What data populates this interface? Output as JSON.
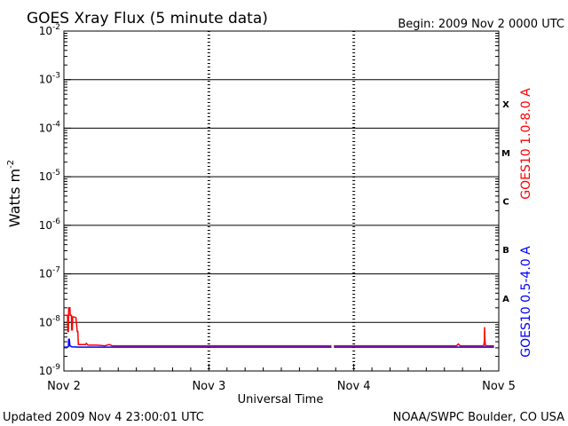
{
  "header": {
    "title": "GOES Xray Flux (5 minute data)",
    "begin": "Begin:  2009 Nov 2 0000 UTC"
  },
  "footer": {
    "updated": "Updated 2009 Nov  4 23:00:01 UTC",
    "credit": "NOAA/SWPC Boulder, CO USA"
  },
  "colors": {
    "long_channel": "#ff0000",
    "short_channel": "#0000ff",
    "axis": "#000000"
  },
  "chart_data": {
    "type": "line",
    "title": "GOES Xray Flux (5 minute data)",
    "xlabel": "Universal Time",
    "ylabel": "Watts m",
    "ylabel_sup": "-2",
    "yscale": "log",
    "ylim": [
      1e-09,
      0.01
    ],
    "xlim": [
      0,
      72
    ],
    "x_unit": "hours since 2009 Nov 2 0000 UTC",
    "x_ticks": [
      {
        "x": 0,
        "label": "Nov 2"
      },
      {
        "x": 24,
        "label": "Nov 3"
      },
      {
        "x": 48,
        "label": "Nov 4"
      },
      {
        "x": 72,
        "label": "Nov 5"
      }
    ],
    "y_ticks": [
      {
        "exp": -9,
        "label": "10",
        "sup": "-9"
      },
      {
        "exp": -8,
        "label": "10",
        "sup": "-8"
      },
      {
        "exp": -7,
        "label": "10",
        "sup": "-7"
      },
      {
        "exp": -6,
        "label": "10",
        "sup": "-6"
      },
      {
        "exp": -5,
        "label": "10",
        "sup": "-5"
      },
      {
        "exp": -4,
        "label": "10",
        "sup": "-4"
      },
      {
        "exp": -3,
        "label": "10",
        "sup": "-3"
      },
      {
        "exp": -2,
        "label": "10",
        "sup": "-2"
      }
    ],
    "flare_classes": [
      {
        "label": "A",
        "exp": -8
      },
      {
        "label": "B",
        "exp": -7
      },
      {
        "label": "C",
        "exp": -6
      },
      {
        "label": "M",
        "exp": -5
      },
      {
        "label": "X",
        "exp": -4
      }
    ],
    "grid_horizontal": true,
    "series": [
      {
        "name": "GOES10 1.0-8.0 A",
        "color": "#ff0000",
        "segments": [
          [
            [
              0,
              1.4e-08
            ],
            [
              0.6,
              1.4e-08
            ],
            [
              0.65,
              6.5e-09
            ],
            [
              0.75,
              6.5e-09
            ],
            [
              0.8,
              2e-08
            ],
            [
              1.0,
              2e-08
            ],
            [
              1.05,
              1.4e-08
            ],
            [
              1.25,
              1.4e-08
            ],
            [
              1.3,
              7e-09
            ],
            [
              1.4,
              7e-09
            ],
            [
              1.45,
              1.3e-08
            ],
            [
              1.7,
              1.3e-08
            ],
            [
              2.0,
              1.25e-08
            ],
            [
              2.2,
              6.5e-09
            ],
            [
              2.3,
              6.5e-09
            ],
            [
              2.4,
              3.5e-09
            ],
            [
              3.6,
              3.5e-09
            ],
            [
              3.7,
              3.7e-09
            ],
            [
              4.0,
              3.4e-09
            ],
            [
              5.5,
              3.4e-09
            ],
            [
              6.8,
              3.3e-09
            ],
            [
              7.5,
              3.5e-09
            ],
            [
              8,
              3.3e-09
            ],
            [
              12,
              3.3e-09
            ],
            [
              20,
              3.3e-09
            ],
            [
              28,
              3.3e-09
            ],
            [
              35,
              3.3e-09
            ],
            [
              44,
              3.3e-09
            ],
            [
              44.3,
              3.3e-09
            ]
          ],
          [
            [
              44.7,
              3.3e-09
            ],
            [
              52,
              3.3e-09
            ],
            [
              60,
              3.3e-09
            ],
            [
              65,
              3.3e-09
            ],
            [
              65.3,
              3.6e-09
            ],
            [
              65.6,
              3.3e-09
            ],
            [
              69.5,
              3.3e-09
            ],
            [
              69.6,
              4e-09
            ],
            [
              69.65,
              8e-09
            ],
            [
              69.7,
              4.5e-09
            ],
            [
              69.8,
              3.3e-09
            ],
            [
              71.2,
              3.3e-09
            ]
          ]
        ]
      },
      {
        "name": "GOES10 0.5-4.0 A",
        "color": "#0000ff",
        "segments": [
          [
            [
              0,
              3.1e-09
            ],
            [
              0.6,
              3.1e-09
            ],
            [
              0.75,
              3.2e-09
            ],
            [
              0.8,
              4.5e-09
            ],
            [
              0.9,
              4.5e-09
            ],
            [
              1.0,
              3.3e-09
            ],
            [
              1.3,
              3.15e-09
            ],
            [
              2.4,
              3.1e-09
            ],
            [
              8,
              3.1e-09
            ],
            [
              20,
              3.1e-09
            ],
            [
              35,
              3.1e-09
            ],
            [
              44.3,
              3.1e-09
            ]
          ],
          [
            [
              44.7,
              3.1e-09
            ],
            [
              60,
              3.1e-09
            ],
            [
              71.2,
              3.1e-09
            ]
          ]
        ]
      }
    ]
  }
}
